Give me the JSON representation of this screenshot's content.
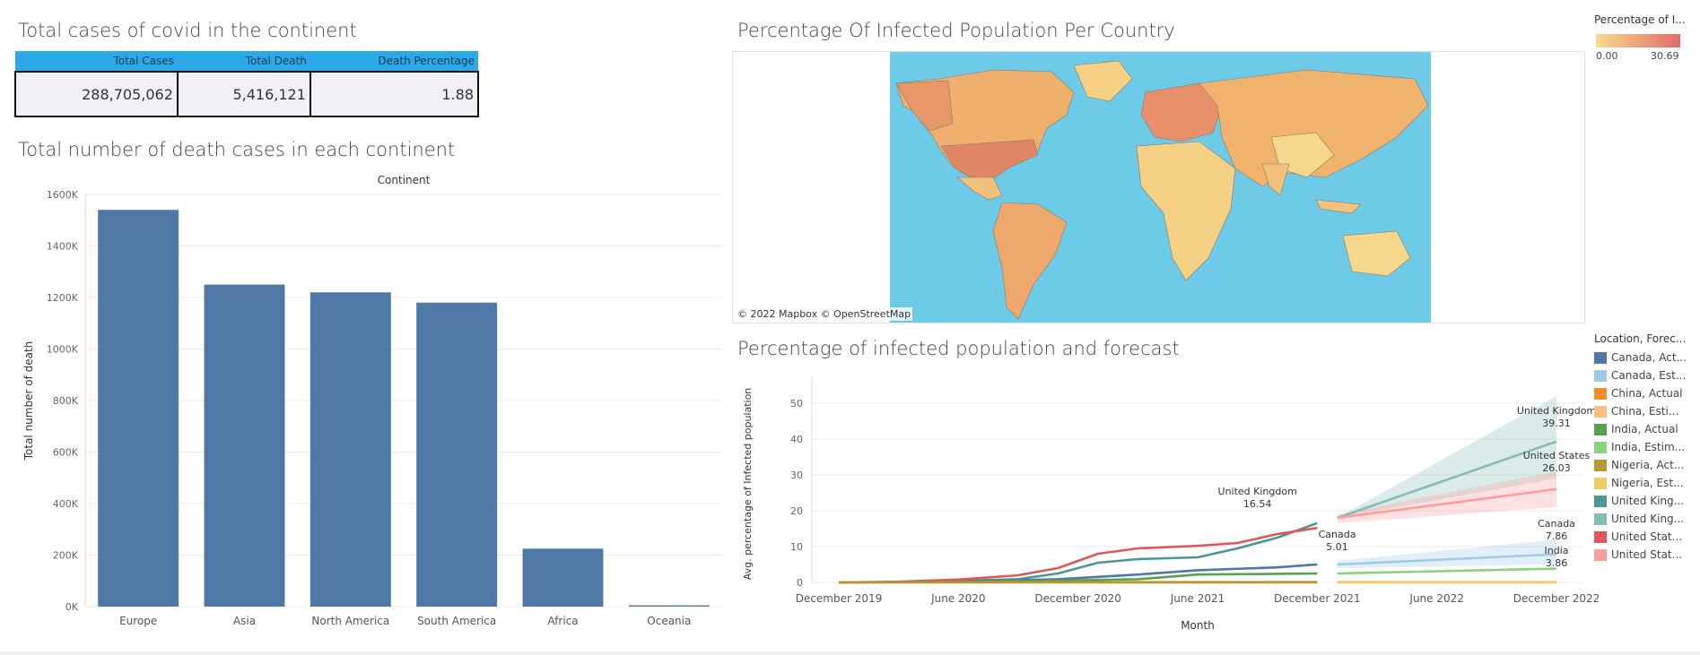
{
  "kpi": {
    "title": "Total cases of covid in the continent",
    "headers": [
      "Total Cases",
      "Total Death",
      "Death Percentage"
    ],
    "values": [
      "288,705,062",
      "5,416,121",
      "1.88"
    ]
  },
  "bar_panel": {
    "title": "Total number of death cases in each continent",
    "header": "Continent"
  },
  "map_panel": {
    "title": "Percentage Of Infected Population Per Country",
    "attribution": "© 2022 Mapbox © OpenStreetMap",
    "legend_title": "Percentage of I...",
    "legend_min": "0.00",
    "legend_max": "30.69",
    "colors": {
      "low": "#f6dc8c",
      "high": "#e06c6c",
      "ocean": "#6ecbe8"
    }
  },
  "line_panel": {
    "title": "Percentage of infected population and forecast",
    "legend_title": "Location, Forec...",
    "legend": [
      {
        "label": "Canada, Act...",
        "color": "#4e79a7"
      },
      {
        "label": "Canada, Est...",
        "color": "#a0cbe8"
      },
      {
        "label": "China, Actual",
        "color": "#f28e2b"
      },
      {
        "label": "China, Esti...",
        "color": "#ffbe7d"
      },
      {
        "label": "India, Actual",
        "color": "#59a14f"
      },
      {
        "label": "India, Estim...",
        "color": "#8cd17d"
      },
      {
        "label": "Nigeria, Act...",
        "color": "#b6992d"
      },
      {
        "label": "Nigeria, Est...",
        "color": "#f1ce63"
      },
      {
        "label": "United King...",
        "color": "#499894"
      },
      {
        "label": "United King...",
        "color": "#86bcb6"
      },
      {
        "label": "United Stat...",
        "color": "#e15759"
      },
      {
        "label": "United Stat...",
        "color": "#ff9d9a"
      }
    ]
  },
  "chart_data": [
    {
      "type": "bar",
      "title": "Total number of death cases in each continent",
      "xlabel": "Continent",
      "ylabel": "Total number of death",
      "categories": [
        "Europe",
        "Asia",
        "North America",
        "South America",
        "Africa",
        "Oceania"
      ],
      "values": [
        1540000,
        1250000,
        1220000,
        1180000,
        225000,
        5000
      ],
      "yticks": [
        "0K",
        "200K",
        "400K",
        "600K",
        "800K",
        "1000K",
        "1200K",
        "1400K",
        "1600K"
      ],
      "ylim": [
        0,
        1600000
      ],
      "color": "#4e79a7",
      "grid": true
    },
    {
      "type": "line",
      "title": "Percentage of infected population and forecast",
      "xlabel": "Month",
      "ylabel": "Avg. percentage of Infected population",
      "xticks": [
        "December 2019",
        "June 2020",
        "December 2020",
        "June 2021",
        "December 2021",
        "June 2022",
        "December 2022"
      ],
      "yticks": [
        "0",
        "10",
        "20",
        "30",
        "40",
        "50"
      ],
      "ylim": [
        0,
        55
      ],
      "series": [
        {
          "name": "United Kingdom, Actual",
          "color": "#499894",
          "x": [
            "2019-12",
            "2020-03",
            "2020-06",
            "2020-09",
            "2020-11",
            "2021-01",
            "2021-03",
            "2021-06",
            "2021-08",
            "2021-10",
            "2021-12"
          ],
          "y": [
            0,
            0.1,
            0.5,
            0.9,
            2.5,
            5.5,
            6.5,
            7.0,
            9.5,
            12.5,
            16.54
          ]
        },
        {
          "name": "United States, Actual",
          "color": "#e15759",
          "x": [
            "2019-12",
            "2020-03",
            "2020-06",
            "2020-09",
            "2020-11",
            "2021-01",
            "2021-03",
            "2021-06",
            "2021-08",
            "2021-10",
            "2021-12"
          ],
          "y": [
            0,
            0.2,
            0.8,
            2.0,
            4.0,
            8.0,
            9.5,
            10.2,
            11.0,
            13.5,
            15.2
          ]
        },
        {
          "name": "Canada, Actual",
          "color": "#4e79a7",
          "x": [
            "2019-12",
            "2020-06",
            "2020-11",
            "2021-03",
            "2021-06",
            "2021-10",
            "2021-12"
          ],
          "y": [
            0,
            0.2,
            0.9,
            2.2,
            3.4,
            4.2,
            5.01
          ]
        },
        {
          "name": "India, Actual",
          "color": "#59a14f",
          "x": [
            "2019-12",
            "2020-06",
            "2020-11",
            "2021-03",
            "2021-06",
            "2021-10",
            "2021-12"
          ],
          "y": [
            0,
            0.1,
            0.5,
            0.9,
            2.2,
            2.4,
            2.5
          ]
        },
        {
          "name": "China, Actual",
          "color": "#f28e2b",
          "x": [
            "2019-12",
            "2021-12"
          ],
          "y": [
            0.01,
            0.01
          ]
        },
        {
          "name": "Nigeria, Actual",
          "color": "#b6992d",
          "x": [
            "2019-12",
            "2021-12"
          ],
          "y": [
            0.05,
            0.1
          ]
        },
        {
          "name": "United Kingdom, Estimate",
          "color": "#86bcb6",
          "x": [
            "2022-01",
            "2022-12"
          ],
          "y": [
            18,
            39.31
          ],
          "band": [
            [
              18,
              18
            ],
            [
              29,
              52
            ]
          ]
        },
        {
          "name": "United States, Estimate",
          "color": "#ff9d9a",
          "x": [
            "2022-01",
            "2022-12"
          ],
          "y": [
            18,
            26.03
          ],
          "band": [
            [
              16.5,
              19
            ],
            [
              21,
              31
            ]
          ]
        },
        {
          "name": "Canada, Estimate",
          "color": "#a0cbe8",
          "x": [
            "2022-01",
            "2022-12"
          ],
          "y": [
            5,
            7.86
          ],
          "band": [
            [
              4,
              6
            ],
            [
              5,
              12
            ]
          ]
        },
        {
          "name": "India, Estimate",
          "color": "#8cd17d",
          "x": [
            "2022-01",
            "2022-12"
          ],
          "y": [
            2.5,
            3.86
          ]
        },
        {
          "name": "China, Estimate",
          "color": "#ffbe7d",
          "x": [
            "2022-01",
            "2022-12"
          ],
          "y": [
            0.01,
            0.01
          ]
        },
        {
          "name": "Nigeria, Estimate",
          "color": "#f1ce63",
          "x": [
            "2022-01",
            "2022-12"
          ],
          "y": [
            0.1,
            0.12
          ]
        }
      ],
      "annotations": [
        {
          "label": "United Kingdom",
          "value": "16.54",
          "x": "2021-09",
          "y": 21
        },
        {
          "label": "Canada",
          "value": "5.01",
          "x": "2022-01",
          "y": 9
        },
        {
          "label": "United Kingdom",
          "value": "39.31",
          "x": "2022-12",
          "y": 43.5
        },
        {
          "label": "United States",
          "value": "26.03",
          "x": "2022-12",
          "y": 31
        },
        {
          "label": "Canada",
          "value": "7.86",
          "x": "2022-12",
          "y": 12
        },
        {
          "label": "India",
          "value": "3.86",
          "x": "2022-12",
          "y": 4.5
        }
      ]
    }
  ]
}
